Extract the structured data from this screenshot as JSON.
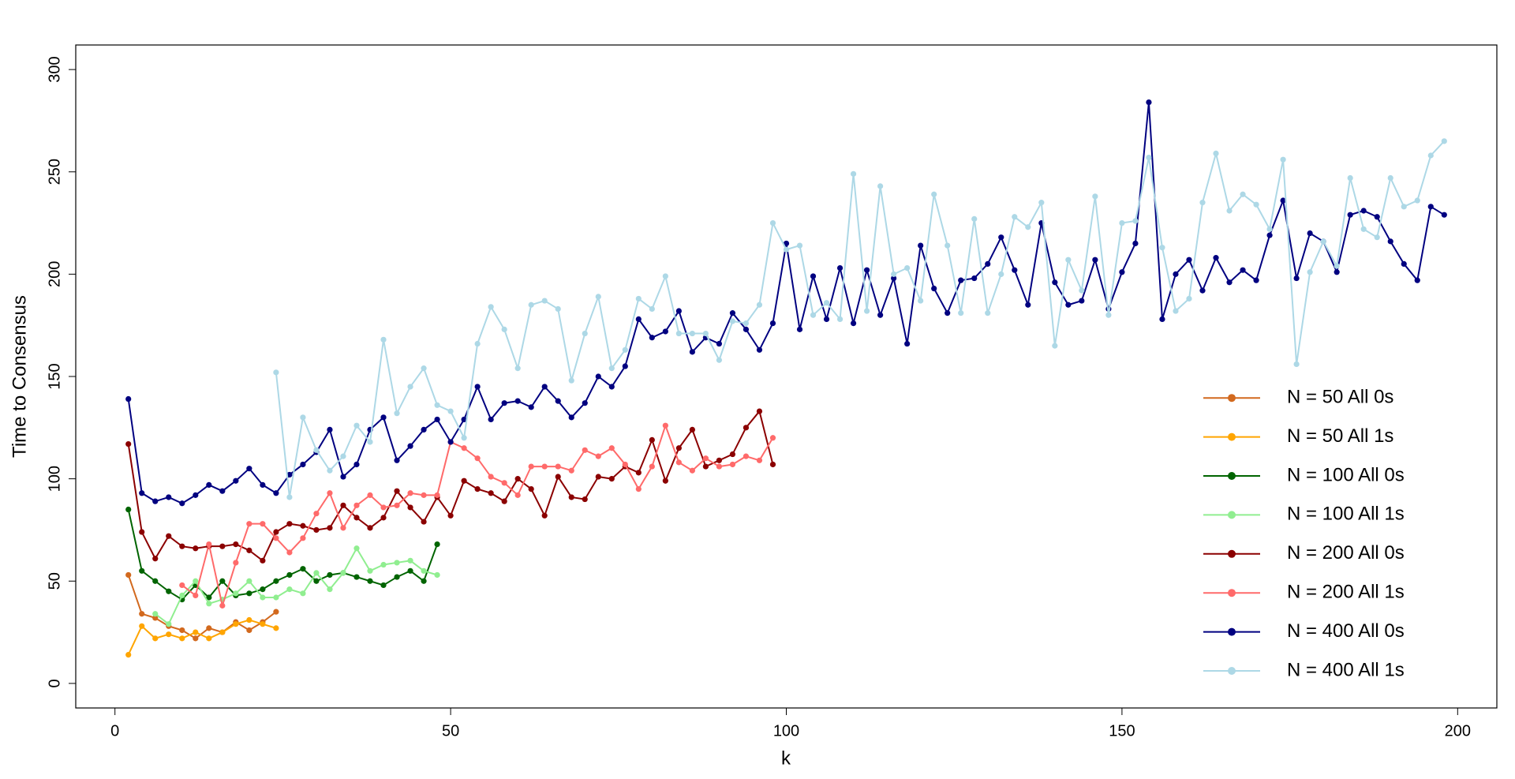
{
  "chart_data": {
    "type": "line",
    "x_label": "k",
    "y_label": "Time to Consensus",
    "xlim": [
      -5.84,
      205.84
    ],
    "ylim": [
      -12,
      312
    ],
    "xticks": [
      0,
      50,
      100,
      150,
      200
    ],
    "yticks": [
      0,
      50,
      100,
      150,
      200,
      250,
      300
    ],
    "legend": "bottomright",
    "grid": false,
    "series": [
      {
        "name": "N = 50 All 0s",
        "color": "#D2691E",
        "x": [
          2,
          4,
          6,
          8,
          10,
          12,
          14,
          16,
          18,
          20,
          22,
          24
        ],
        "values": [
          53,
          34,
          32,
          28,
          26,
          22,
          27,
          25,
          30,
          26,
          30,
          35
        ]
      },
      {
        "name": "N = 50 All 1s",
        "color": "#FFA500",
        "x": [
          2,
          4,
          6,
          8,
          10,
          12,
          14,
          16,
          18,
          20,
          22,
          24
        ],
        "values": [
          14,
          28,
          22,
          24,
          22,
          25,
          22,
          25,
          29,
          31,
          29,
          27
        ]
      },
      {
        "name": "N = 100 All 0s",
        "color": "#006400",
        "x": [
          2,
          4,
          6,
          8,
          10,
          12,
          14,
          16,
          18,
          20,
          22,
          24,
          26,
          28,
          30,
          32,
          34,
          36,
          38,
          40,
          42,
          44,
          46,
          48
        ],
        "values": [
          85,
          55,
          50,
          45,
          41,
          48,
          42,
          50,
          43,
          44,
          46,
          50,
          53,
          56,
          50,
          53,
          54,
          52,
          50,
          48,
          52,
          55,
          50,
          68
        ]
      },
      {
        "name": "N = 100 All 1s",
        "color": "#90EE90",
        "x": [
          6,
          8,
          10,
          12,
          14,
          16,
          18,
          20,
          22,
          24,
          26,
          28,
          30,
          32,
          34,
          36,
          38,
          40,
          42,
          44,
          46,
          48
        ],
        "values": [
          34,
          29,
          43,
          50,
          39,
          41,
          44,
          50,
          42,
          42,
          46,
          44,
          54,
          46,
          54,
          66,
          55,
          58,
          59,
          60,
          55,
          53
        ]
      },
      {
        "name": "N = 200 All 0s",
        "color": "#8B0000",
        "x": [
          2,
          4,
          6,
          8,
          10,
          12,
          14,
          16,
          18,
          20,
          22,
          24,
          26,
          28,
          30,
          32,
          34,
          36,
          38,
          40,
          42,
          44,
          46,
          48,
          50,
          52,
          54,
          56,
          58,
          60,
          62,
          64,
          66,
          68,
          70,
          72,
          74,
          76,
          78,
          80,
          82,
          84,
          86,
          88,
          90,
          92,
          94,
          96,
          98
        ],
        "values": [
          117,
          74,
          61,
          72,
          67,
          66,
          67,
          67,
          68,
          65,
          60,
          74,
          78,
          77,
          75,
          76,
          87,
          81,
          76,
          81,
          94,
          86,
          79,
          91,
          82,
          99,
          95,
          93,
          89,
          100,
          95,
          82,
          101,
          91,
          90,
          101,
          100,
          106,
          103,
          119,
          99,
          115,
          124,
          106,
          109,
          112,
          125,
          133,
          107
        ]
      },
      {
        "name": "N = 200 All 1s",
        "color": "#FF6A6A",
        "x": [
          10,
          12,
          14,
          16,
          18,
          20,
          22,
          24,
          26,
          28,
          30,
          32,
          34,
          36,
          38,
          40,
          42,
          44,
          46,
          48,
          50,
          52,
          54,
          56,
          58,
          60,
          62,
          64,
          66,
          68,
          70,
          72,
          74,
          76,
          78,
          80,
          82,
          84,
          86,
          88,
          90,
          92,
          94,
          96,
          98
        ],
        "values": [
          48,
          43,
          68,
          38,
          59,
          78,
          78,
          71,
          64,
          71,
          83,
          93,
          76,
          87,
          92,
          86,
          87,
          93,
          92,
          92,
          118,
          115,
          110,
          101,
          98,
          92,
          106,
          106,
          106,
          104,
          114,
          111,
          115,
          107,
          95,
          106,
          126,
          108,
          104,
          110,
          106,
          107,
          111,
          109,
          120
        ]
      },
      {
        "name": "N = 400 All 0s",
        "color": "#000080",
        "x": [
          2,
          4,
          6,
          8,
          10,
          12,
          14,
          16,
          18,
          20,
          22,
          24,
          26,
          28,
          30,
          32,
          34,
          36,
          38,
          40,
          42,
          44,
          46,
          48,
          50,
          52,
          54,
          56,
          58,
          60,
          62,
          64,
          66,
          68,
          70,
          72,
          74,
          76,
          78,
          80,
          82,
          84,
          86,
          88,
          90,
          92,
          94,
          96,
          98,
          100,
          102,
          104,
          106,
          108,
          110,
          112,
          114,
          116,
          118,
          120,
          122,
          124,
          126,
          128,
          130,
          132,
          134,
          136,
          138,
          140,
          142,
          144,
          146,
          148,
          150,
          152,
          154,
          156,
          158,
          160,
          162,
          164,
          166,
          168,
          170,
          172,
          174,
          176,
          178,
          180,
          182,
          184,
          186,
          188,
          190,
          192,
          194,
          196,
          198
        ],
        "values": [
          139,
          93,
          89,
          91,
          88,
          92,
          97,
          94,
          99,
          105,
          97,
          93,
          102,
          107,
          113,
          124,
          101,
          107,
          124,
          130,
          109,
          116,
          124,
          129,
          118,
          129,
          145,
          129,
          137,
          138,
          135,
          145,
          138,
          130,
          137,
          150,
          145,
          155,
          178,
          169,
          172,
          182,
          162,
          169,
          166,
          181,
          173,
          163,
          176,
          215,
          173,
          199,
          178,
          203,
          176,
          202,
          180,
          198,
          166,
          214,
          193,
          181,
          197,
          198,
          205,
          218,
          202,
          185,
          225,
          196,
          185,
          187,
          207,
          183,
          201,
          215,
          284,
          178,
          200,
          207,
          192,
          208,
          196,
          202,
          197,
          219,
          236,
          198,
          220,
          216,
          201,
          229,
          231,
          228,
          216,
          205,
          197,
          233,
          229
        ]
      },
      {
        "name": "N = 400 All 1s",
        "color": "#ADD8E6",
        "x": [
          24,
          26,
          28,
          30,
          32,
          34,
          36,
          38,
          40,
          42,
          44,
          46,
          48,
          50,
          52,
          54,
          56,
          58,
          60,
          62,
          64,
          66,
          68,
          70,
          72,
          74,
          76,
          78,
          80,
          82,
          84,
          86,
          88,
          90,
          92,
          94,
          96,
          98,
          100,
          102,
          104,
          106,
          108,
          110,
          112,
          114,
          116,
          118,
          120,
          122,
          124,
          126,
          128,
          130,
          132,
          134,
          136,
          138,
          140,
          142,
          144,
          146,
          148,
          150,
          152,
          154,
          156,
          158,
          160,
          162,
          164,
          166,
          168,
          170,
          172,
          174,
          176,
          178,
          180,
          182,
          184,
          186,
          188,
          190,
          192,
          194,
          196,
          198
        ],
        "values": [
          152,
          91,
          130,
          114,
          104,
          111,
          126,
          118,
          168,
          132,
          145,
          154,
          136,
          133,
          120,
          166,
          184,
          173,
          154,
          185,
          187,
          183,
          148,
          171,
          189,
          154,
          163,
          188,
          183,
          199,
          171,
          171,
          171,
          158,
          177,
          176,
          185,
          225,
          212,
          214,
          180,
          186,
          178,
          249,
          182,
          243,
          200,
          203,
          187,
          239,
          214,
          181,
          227,
          181,
          200,
          228,
          223,
          235,
          165,
          207,
          192,
          238,
          180,
          225,
          226,
          257,
          213,
          182,
          188,
          235,
          259,
          231,
          239,
          234,
          222,
          256,
          156,
          201,
          216,
          204,
          247,
          222,
          218,
          247,
          233,
          236,
          258,
          265
        ]
      }
    ]
  }
}
